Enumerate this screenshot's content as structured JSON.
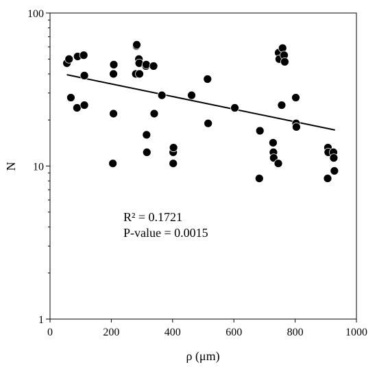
{
  "chart_data": {
    "type": "scatter",
    "title": "",
    "xlabel": "ρ (μm)",
    "ylabel": "N",
    "xlim": [
      0,
      1000
    ],
    "ylim": [
      1,
      100
    ],
    "yscale": "log",
    "grid": false,
    "legend": "none",
    "x_ticks": [
      "0",
      "200",
      "400",
      "600",
      "800",
      "1000"
    ],
    "y_ticks": [
      "1",
      "10",
      "100"
    ],
    "points": [
      [
        55,
        47
      ],
      [
        62,
        50
      ],
      [
        68,
        28
      ],
      [
        88,
        24
      ],
      [
        90,
        52
      ],
      [
        110,
        53
      ],
      [
        112,
        39
      ],
      [
        112,
        25
      ],
      [
        205,
        10.4
      ],
      [
        207,
        22
      ],
      [
        207,
        40
      ],
      [
        208,
        46
      ],
      [
        280,
        40
      ],
      [
        282,
        61
      ],
      [
        283,
        62
      ],
      [
        290,
        50
      ],
      [
        291,
        47
      ],
      [
        292,
        40
      ],
      [
        313,
        45
      ],
      [
        314,
        46
      ],
      [
        315,
        16
      ],
      [
        316,
        12.3
      ],
      [
        338,
        45
      ],
      [
        340,
        22
      ],
      [
        365,
        29
      ],
      [
        402,
        10.4
      ],
      [
        402,
        12.3
      ],
      [
        403,
        13.2
      ],
      [
        462,
        29
      ],
      [
        514,
        37
      ],
      [
        516,
        19
      ],
      [
        603,
        24
      ],
      [
        683,
        8.3
      ],
      [
        685,
        17
      ],
      [
        728,
        14.2
      ],
      [
        729,
        12.3
      ],
      [
        730,
        11.3
      ],
      [
        745,
        10.4
      ],
      [
        746,
        55
      ],
      [
        748,
        50
      ],
      [
        756,
        25
      ],
      [
        759,
        59
      ],
      [
        764,
        53
      ],
      [
        766,
        48
      ],
      [
        802,
        28
      ],
      [
        803,
        19
      ],
      [
        804,
        18
      ],
      [
        906,
        8.3
      ],
      [
        907,
        13.2
      ],
      [
        908,
        12.3
      ],
      [
        925,
        12.3
      ],
      [
        926,
        11.3
      ],
      [
        928,
        9.3
      ]
    ],
    "trendline": {
      "x": [
        55,
        930
      ],
      "y": [
        39.5,
        17.2
      ]
    },
    "annotations": {
      "r2": "R² = 0.1721",
      "pvalue": "P-value = 0.0015"
    }
  }
}
